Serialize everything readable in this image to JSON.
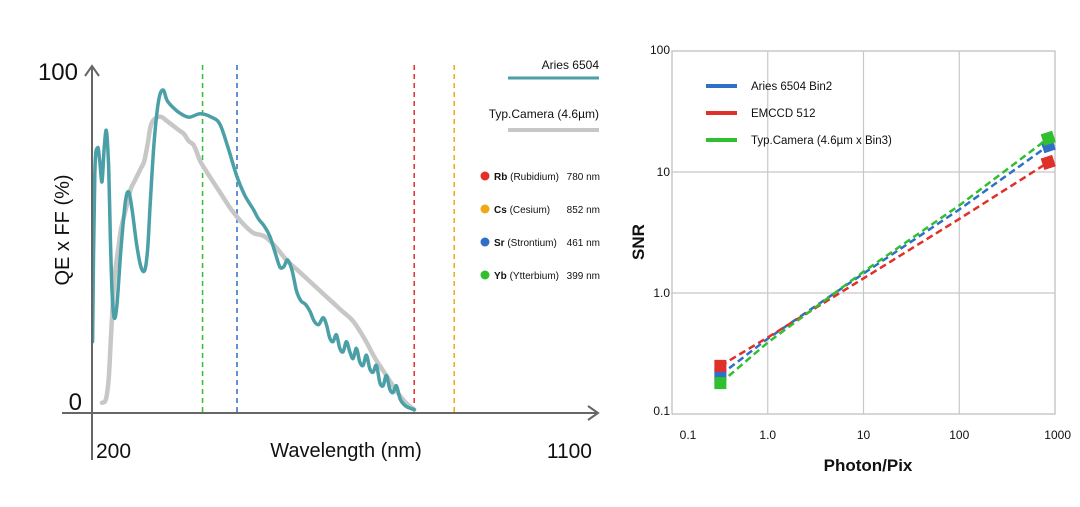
{
  "colors": {
    "aries": "#4aa0a6",
    "typ": "#c7c7c7",
    "rb": "#e0302a",
    "cs": "#f0a818",
    "sr": "#2f6fc8",
    "yb": "#2fbf2f",
    "grid": "#c8c8c8"
  },
  "chart_data": [
    {
      "type": "line",
      "title": "",
      "xlabel": "Wavelength (nm)",
      "ylabel": "QE x FF (%)",
      "xlim": [
        200,
        1100
      ],
      "ylim": [
        0,
        100
      ],
      "x_ticks": [
        "200",
        "1100"
      ],
      "y_ticks": [
        "0",
        "100"
      ],
      "legend_position": "top-right",
      "series": [
        {
          "name": "Aries 6504",
          "color_key": "aries",
          "points": [
            [
              201,
              21
            ],
            [
              205,
              70
            ],
            [
              210,
              78
            ],
            [
              214,
              74
            ],
            [
              218,
              68
            ],
            [
              222,
              78
            ],
            [
              226,
              83
            ],
            [
              230,
              72
            ],
            [
              233,
              52
            ],
            [
              236,
              36
            ],
            [
              240,
              28
            ],
            [
              245,
              32
            ],
            [
              252,
              48
            ],
            [
              260,
              62
            ],
            [
              266,
              65
            ],
            [
              272,
              60
            ],
            [
              280,
              50
            ],
            [
              288,
              43
            ],
            [
              295,
              42
            ],
            [
              300,
              48
            ],
            [
              305,
              62
            ],
            [
              312,
              80
            ],
            [
              320,
              92
            ],
            [
              328,
              95
            ],
            [
              335,
              92
            ],
            [
              345,
              90
            ],
            [
              360,
              88
            ],
            [
              375,
              87
            ],
            [
              395,
              88
            ],
            [
              415,
              87
            ],
            [
              430,
              85
            ],
            [
              445,
              78
            ],
            [
              460,
              70
            ],
            [
              475,
              64
            ],
            [
              490,
              60
            ],
            [
              500,
              57
            ],
            [
              510,
              55
            ],
            [
              520,
              52
            ],
            [
              530,
              47
            ],
            [
              538,
              43
            ],
            [
              545,
              43
            ],
            [
              552,
              45
            ],
            [
              560,
              42
            ],
            [
              568,
              36
            ],
            [
              576,
              33
            ],
            [
              584,
              32
            ],
            [
              592,
              30
            ],
            [
              600,
              27
            ],
            [
              608,
              26
            ],
            [
              616,
              28
            ],
            [
              622,
              26
            ],
            [
              628,
              22
            ],
            [
              634,
              21
            ],
            [
              640,
              23
            ],
            [
              646,
              19
            ],
            [
              652,
              18
            ],
            [
              658,
              21
            ],
            [
              664,
              18
            ],
            [
              670,
              16
            ],
            [
              676,
              19
            ],
            [
              682,
              15
            ],
            [
              688,
              14
            ],
            [
              694,
              17
            ],
            [
              700,
              13
            ],
            [
              706,
              12
            ],
            [
              712,
              14
            ],
            [
              718,
              9
            ],
            [
              724,
              8
            ],
            [
              730,
              11
            ],
            [
              736,
              7
            ],
            [
              742,
              6
            ],
            [
              748,
              8
            ],
            [
              755,
              4
            ],
            [
              765,
              2
            ],
            [
              780,
              1
            ]
          ]
        },
        {
          "name": "Typ.Camera (4.6µm)",
          "color_key": "typ",
          "points": [
            [
              218,
              3
            ],
            [
              225,
              4
            ],
            [
              230,
              10
            ],
            [
              234,
              22
            ],
            [
              238,
              34
            ],
            [
              242,
              42
            ],
            [
              247,
              48
            ],
            [
              252,
              54
            ],
            [
              258,
              58
            ],
            [
              264,
              62
            ],
            [
              270,
              66
            ],
            [
              276,
              68
            ],
            [
              282,
              70
            ],
            [
              288,
              72
            ],
            [
              294,
              74
            ],
            [
              300,
              79
            ],
            [
              305,
              84
            ],
            [
              310,
              86
            ],
            [
              318,
              87
            ],
            [
              326,
              87
            ],
            [
              334,
              86
            ],
            [
              342,
              85
            ],
            [
              350,
              84
            ],
            [
              358,
              83
            ],
            [
              366,
              82
            ],
            [
              374,
              80
            ],
            [
              382,
              79
            ],
            [
              388,
              77
            ],
            [
              395,
              74
            ],
            [
              410,
              70
            ],
            [
              430,
              65
            ],
            [
              450,
              60
            ],
            [
              470,
              56
            ],
            [
              490,
              53
            ],
            [
              510,
              52
            ],
            [
              530,
              49
            ],
            [
              550,
              45
            ],
            [
              570,
              42
            ],
            [
              590,
              39
            ],
            [
              610,
              36
            ],
            [
              630,
              33
            ],
            [
              650,
              30
            ],
            [
              670,
              27
            ],
            [
              690,
              22
            ],
            [
              710,
              16
            ],
            [
              730,
              11
            ],
            [
              750,
              6
            ],
            [
              765,
              3
            ],
            [
              780,
              1
            ]
          ]
        }
      ],
      "markers": [
        {
          "label": "Rb",
          "name": "(Rubidium)",
          "nm": 780,
          "value": "780 nm",
          "color_key": "rb"
        },
        {
          "label": "Cs",
          "name": "(Cesium)",
          "nm": 852,
          "value": "852 nm",
          "color_key": "cs"
        },
        {
          "label": "Sr",
          "name": "(Strontium)",
          "nm": 461,
          "value": "461 nm",
          "color_key": "sr"
        },
        {
          "label": "Yb",
          "name": "(Ytterbium)",
          "nm": 399,
          "value": "399 nm",
          "color_key": "yb"
        }
      ]
    },
    {
      "type": "line",
      "title": "",
      "xlabel": "Photon/Pix",
      "ylabel": "SNR",
      "x_scale": "log",
      "y_scale": "log",
      "xlim": [
        0.1,
        1000
      ],
      "ylim": [
        0.1,
        100
      ],
      "x_ticks": [
        {
          "v": 0.1,
          "t": "0.1"
        },
        {
          "v": 1,
          "t": "1.0"
        },
        {
          "v": 10,
          "t": "10"
        },
        {
          "v": 100,
          "t": "100"
        },
        {
          "v": 1000,
          "t": "1000"
        }
      ],
      "y_ticks": [
        {
          "v": 0.1,
          "t": "0.1"
        },
        {
          "v": 1,
          "t": "1.0"
        },
        {
          "v": 10,
          "t": "10"
        },
        {
          "v": 100,
          "t": "100"
        }
      ],
      "grid": true,
      "legend_position": "top-left",
      "series": [
        {
          "name": "Aries 6504 Bin2",
          "color_key": "sr",
          "points": [
            [
              0.32,
              0.21
            ],
            [
              1,
              0.42
            ],
            [
              10,
              1.45
            ],
            [
              100,
              4.9
            ],
            [
              850,
              16.5
            ]
          ]
        },
        {
          "name": "EMCCD 512",
          "color_key": "rb",
          "points": [
            [
              0.32,
              0.25
            ],
            [
              1,
              0.43
            ],
            [
              10,
              1.32
            ],
            [
              100,
              4.1
            ],
            [
              850,
              12
            ]
          ]
        },
        {
          "name": "Typ.Camera (4.6µm x Bin3)",
          "color_key": "yb",
          "points": [
            [
              0.32,
              0.18
            ],
            [
              1,
              0.39
            ],
            [
              10,
              1.5
            ],
            [
              100,
              5.3
            ],
            [
              850,
              19
            ]
          ]
        }
      ]
    }
  ]
}
